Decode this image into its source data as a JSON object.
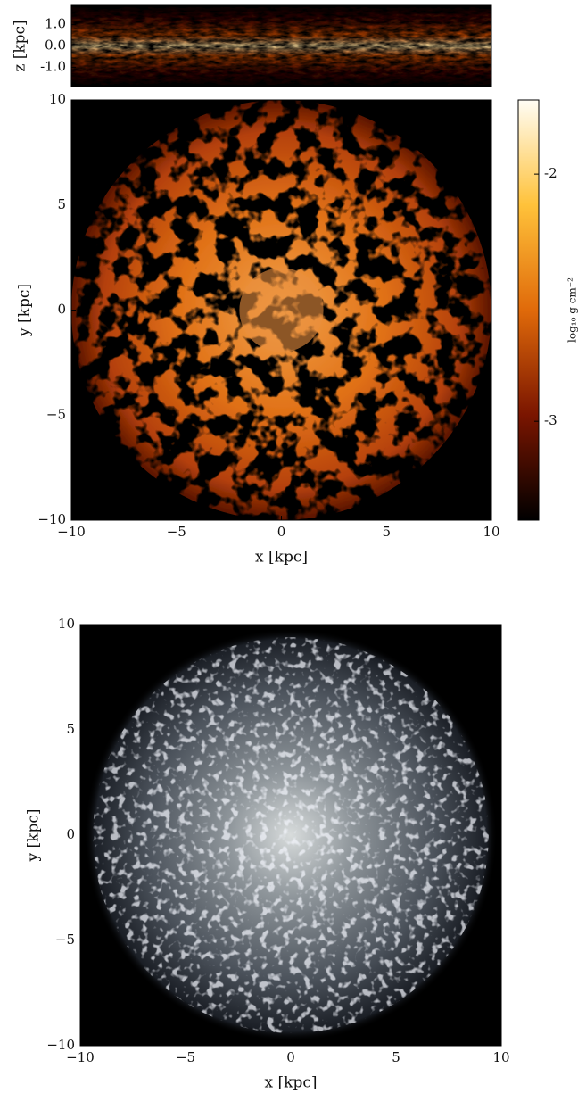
{
  "chart_data": [
    {
      "type": "image",
      "ylabel": "z [kpc]",
      "cmap": "afmhot",
      "xlim": [
        -10,
        10
      ],
      "ylim": [
        -1.9,
        1.9
      ],
      "yticks": [
        {
          "value": 1,
          "label": "1.0"
        },
        {
          "value": 0,
          "label": "0.0"
        },
        {
          "value": -1,
          "label": "-1.0"
        }
      ]
    },
    {
      "type": "image",
      "xlabel": "x [kpc]",
      "ylabel": "y [kpc]",
      "cmap": "afmhot",
      "xlim": [
        -10,
        10
      ],
      "ylim": [
        -10,
        10
      ],
      "xticks": [
        {
          "value": -10,
          "label": "−10"
        },
        {
          "value": -5,
          "label": "−5"
        },
        0,
        5,
        10
      ],
      "yticks": [
        {
          "value": -10,
          "label": "−10"
        },
        {
          "value": -5,
          "label": "−5"
        },
        0,
        5,
        10
      ],
      "colorbar": {
        "label": "log₁₀ g cm⁻²",
        "clim": [
          -3.4,
          -1.7
        ],
        "ticks": [
          -2,
          -3
        ]
      }
    },
    {
      "type": "image",
      "xlabel": "x [kpc]",
      "ylabel": "y [kpc]",
      "cmap": "bone",
      "xlim": [
        -10,
        10
      ],
      "ylim": [
        -10,
        10
      ],
      "xticks": [
        {
          "value": -10,
          "label": "−10"
        },
        {
          "value": -5,
          "label": "−5"
        },
        0,
        5,
        10
      ],
      "yticks": [
        {
          "value": -10,
          "label": "−10"
        },
        {
          "value": -5,
          "label": "−5"
        },
        0,
        5,
        10
      ]
    }
  ]
}
